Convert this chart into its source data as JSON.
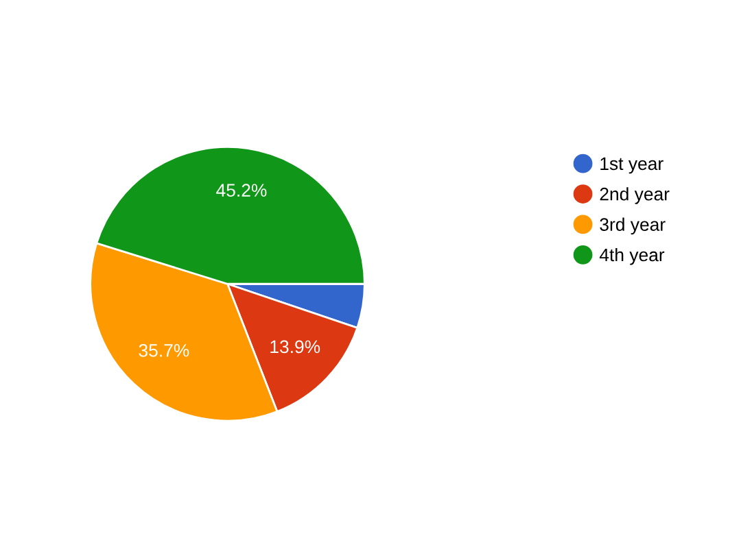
{
  "chart_data": {
    "type": "pie",
    "categories": [
      "1st year",
      "2nd year",
      "3rd year",
      "4th year"
    ],
    "values": [
      5.2,
      13.9,
      35.7,
      45.2
    ],
    "colors": [
      "#3366cc",
      "#dc3912",
      "#ff9900",
      "#109618"
    ],
    "value_labels": [
      null,
      "13.9%",
      "35.7%",
      "45.2%"
    ],
    "legend": "right"
  }
}
